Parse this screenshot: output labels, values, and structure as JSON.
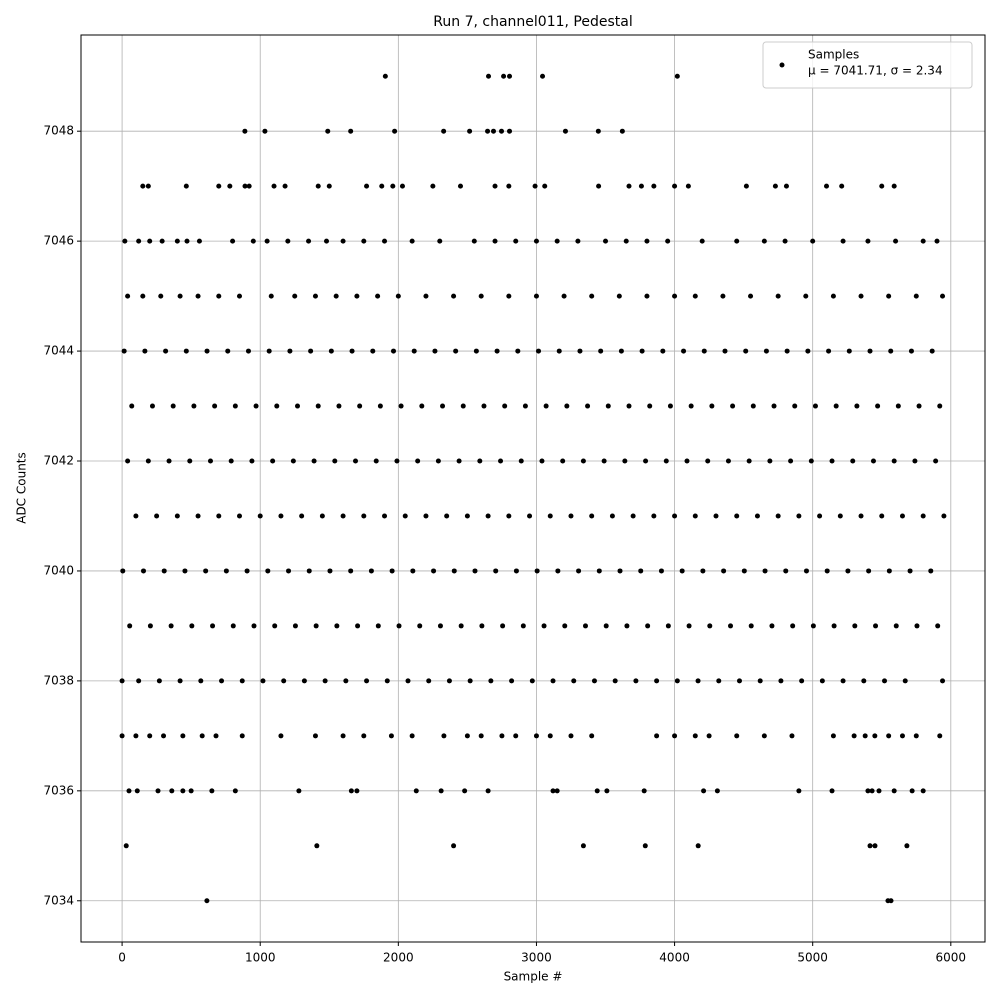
{
  "chart_data": {
    "type": "scatter",
    "title": "Run 7, channel011, Pedestal",
    "x_label": "Sample #",
    "y_label": "ADC Counts",
    "legend_position": "upper right",
    "stats_label": "μ = 7041.71, σ = 2.34",
    "grid": true,
    "xlim": [
      -297.5,
      6247.5
    ],
    "ylim": [
      7033.25,
      7049.75
    ],
    "xticks": [
      0,
      1000,
      2000,
      3000,
      4000,
      5000,
      6000
    ],
    "yticks": [
      7034,
      7036,
      7038,
      7040,
      7042,
      7044,
      7046,
      7048
    ],
    "x": [
      1906,
      2653,
      2762,
      2805,
      3044,
      4020,
      889,
      1034,
      1489,
      1655,
      1973,
      2328,
      2516,
      2646,
      2689,
      2747,
      2805,
      3210,
      3448,
      3622,
      150,
      190,
      465,
      700,
      780,
      890,
      920,
      1100,
      1180,
      1420,
      1500,
      1770,
      1880,
      1960,
      2030,
      2250,
      2450,
      2700,
      2800,
      2990,
      3060,
      3450,
      3670,
      3760,
      3850,
      4000,
      4100,
      4520,
      4730,
      4810,
      5100,
      5210,
      5500,
      5590,
      20,
      120,
      200,
      290,
      400,
      470,
      560,
      800,
      950,
      1050,
      1200,
      1350,
      1480,
      1600,
      1750,
      1900,
      2100,
      2300,
      2550,
      2700,
      2850,
      3000,
      3150,
      3300,
      3500,
      3650,
      3800,
      3950,
      4200,
      4450,
      4650,
      4800,
      5000,
      5220,
      5400,
      5600,
      5800,
      5900,
      40,
      150,
      280,
      420,
      550,
      700,
      850,
      1080,
      1250,
      1400,
      1550,
      1700,
      1850,
      2000,
      2200,
      2400,
      2600,
      2800,
      3000,
      3200,
      3400,
      3600,
      3800,
      4000,
      4150,
      4350,
      4550,
      4750,
      4950,
      5150,
      5350,
      5550,
      5750,
      5940,
      15,
      165,
      315,
      465,
      615,
      765,
      915,
      1065,
      1215,
      1365,
      1515,
      1665,
      1815,
      1965,
      2115,
      2265,
      2415,
      2565,
      2715,
      2865,
      3015,
      3165,
      3315,
      3465,
      3615,
      3765,
      3915,
      4065,
      4215,
      4365,
      4515,
      4665,
      4815,
      4965,
      5115,
      5265,
      5415,
      5565,
      5715,
      5865,
      70,
      220,
      370,
      520,
      670,
      820,
      970,
      1120,
      1270,
      1420,
      1570,
      1720,
      1870,
      2020,
      2170,
      2320,
      2470,
      2620,
      2770,
      2920,
      3070,
      3220,
      3370,
      3520,
      3670,
      3820,
      3970,
      4120,
      4270,
      4420,
      4570,
      4720,
      4870,
      5020,
      5170,
      5320,
      5470,
      5620,
      5770,
      5920,
      40,
      190,
      340,
      490,
      640,
      790,
      940,
      1090,
      1240,
      1390,
      1540,
      1690,
      1840,
      1990,
      2140,
      2290,
      2440,
      2590,
      2740,
      2890,
      3040,
      3190,
      3340,
      3490,
      3640,
      3790,
      3940,
      4090,
      4240,
      4390,
      4540,
      4690,
      4840,
      4990,
      5140,
      5290,
      5440,
      5590,
      5740,
      5890,
      100,
      250,
      400,
      550,
      700,
      850,
      1000,
      1150,
      1300,
      1450,
      1600,
      1750,
      1900,
      2050,
      2200,
      2350,
      2500,
      2650,
      2800,
      2950,
      3100,
      3250,
      3400,
      3550,
      3700,
      3850,
      4000,
      4150,
      4300,
      4450,
      4600,
      4750,
      4900,
      5050,
      5200,
      5350,
      5500,
      5650,
      5800,
      5950,
      5,
      155,
      305,
      455,
      605,
      755,
      905,
      1055,
      1205,
      1355,
      1505,
      1655,
      1805,
      1955,
      2105,
      2255,
      2405,
      2555,
      2705,
      2855,
      3005,
      3155,
      3305,
      3455,
      3605,
      3755,
      3905,
      4055,
      4205,
      4355,
      4505,
      4655,
      4805,
      4955,
      5105,
      5255,
      5405,
      5555,
      5705,
      5855,
      55,
      205,
      355,
      505,
      655,
      805,
      955,
      1105,
      1255,
      1405,
      1555,
      1705,
      1855,
      2005,
      2155,
      2305,
      2455,
      2605,
      2755,
      2905,
      3055,
      3205,
      3355,
      3505,
      3655,
      3805,
      3955,
      4105,
      4255,
      4405,
      4555,
      4705,
      4855,
      5005,
      5155,
      5305,
      5455,
      5605,
      5755,
      5905,
      0,
      120,
      270,
      420,
      570,
      720,
      870,
      1020,
      1170,
      1320,
      1470,
      1620,
      1770,
      1920,
      2070,
      2220,
      2370,
      2520,
      2670,
      2820,
      2970,
      3120,
      3270,
      3420,
      3570,
      3720,
      3870,
      4020,
      4170,
      4320,
      4470,
      4620,
      4770,
      4920,
      5070,
      5220,
      5370,
      5520,
      5670,
      5940,
      0,
      100,
      200,
      300,
      440,
      580,
      680,
      870,
      1150,
      1400,
      1600,
      1750,
      1950,
      2100,
      2330,
      2500,
      2600,
      2750,
      2850,
      3000,
      3100,
      3250,
      3400,
      3870,
      4000,
      4150,
      4250,
      4450,
      4650,
      4850,
      5150,
      5300,
      5380,
      5450,
      5550,
      5650,
      5750,
      5920,
      50,
      110,
      260,
      360,
      440,
      500,
      650,
      820,
      1280,
      1660,
      1700,
      2130,
      2310,
      2480,
      2650,
      3120,
      3150,
      3440,
      3510,
      3780,
      4210,
      4310,
      4900,
      5140,
      5400,
      5430,
      5480,
      5590,
      5720,
      5800,
      30,
      1410,
      2400,
      3340,
      3788,
      4171,
      5415,
      5451,
      5682,
      614,
      5545,
      5567
    ],
    "series": [
      {
        "name": "Samples",
        "color": "#000000",
        "values": [
          7049,
          7049,
          7049,
          7049,
          7049,
          7049,
          7048,
          7048,
          7048,
          7048,
          7048,
          7048,
          7048,
          7048,
          7048,
          7048,
          7048,
          7048,
          7048,
          7048,
          7047,
          7047,
          7047,
          7047,
          7047,
          7047,
          7047,
          7047,
          7047,
          7047,
          7047,
          7047,
          7047,
          7047,
          7047,
          7047,
          7047,
          7047,
          7047,
          7047,
          7047,
          7047,
          7047,
          7047,
          7047,
          7047,
          7047,
          7047,
          7047,
          7047,
          7047,
          7047,
          7047,
          7047,
          7046,
          7046,
          7046,
          7046,
          7046,
          7046,
          7046,
          7046,
          7046,
          7046,
          7046,
          7046,
          7046,
          7046,
          7046,
          7046,
          7046,
          7046,
          7046,
          7046,
          7046,
          7046,
          7046,
          7046,
          7046,
          7046,
          7046,
          7046,
          7046,
          7046,
          7046,
          7046,
          7046,
          7046,
          7046,
          7046,
          7046,
          7046,
          7045,
          7045,
          7045,
          7045,
          7045,
          7045,
          7045,
          7045,
          7045,
          7045,
          7045,
          7045,
          7045,
          7045,
          7045,
          7045,
          7045,
          7045,
          7045,
          7045,
          7045,
          7045,
          7045,
          7045,
          7045,
          7045,
          7045,
          7045,
          7045,
          7045,
          7045,
          7045,
          7045,
          7045,
          7044,
          7044,
          7044,
          7044,
          7044,
          7044,
          7044,
          7044,
          7044,
          7044,
          7044,
          7044,
          7044,
          7044,
          7044,
          7044,
          7044,
          7044,
          7044,
          7044,
          7044,
          7044,
          7044,
          7044,
          7044,
          7044,
          7044,
          7044,
          7044,
          7044,
          7044,
          7044,
          7044,
          7044,
          7044,
          7044,
          7044,
          7044,
          7044,
          7044,
          7043,
          7043,
          7043,
          7043,
          7043,
          7043,
          7043,
          7043,
          7043,
          7043,
          7043,
          7043,
          7043,
          7043,
          7043,
          7043,
          7043,
          7043,
          7043,
          7043,
          7043,
          7043,
          7043,
          7043,
          7043,
          7043,
          7043,
          7043,
          7043,
          7043,
          7043,
          7043,
          7043,
          7043,
          7043,
          7043,
          7043,
          7043,
          7043,
          7043,
          7042,
          7042,
          7042,
          7042,
          7042,
          7042,
          7042,
          7042,
          7042,
          7042,
          7042,
          7042,
          7042,
          7042,
          7042,
          7042,
          7042,
          7042,
          7042,
          7042,
          7042,
          7042,
          7042,
          7042,
          7042,
          7042,
          7042,
          7042,
          7042,
          7042,
          7042,
          7042,
          7042,
          7042,
          7042,
          7042,
          7042,
          7042,
          7042,
          7042,
          7041,
          7041,
          7041,
          7041,
          7041,
          7041,
          7041,
          7041,
          7041,
          7041,
          7041,
          7041,
          7041,
          7041,
          7041,
          7041,
          7041,
          7041,
          7041,
          7041,
          7041,
          7041,
          7041,
          7041,
          7041,
          7041,
          7041,
          7041,
          7041,
          7041,
          7041,
          7041,
          7041,
          7041,
          7041,
          7041,
          7041,
          7041,
          7041,
          7041,
          7040,
          7040,
          7040,
          7040,
          7040,
          7040,
          7040,
          7040,
          7040,
          7040,
          7040,
          7040,
          7040,
          7040,
          7040,
          7040,
          7040,
          7040,
          7040,
          7040,
          7040,
          7040,
          7040,
          7040,
          7040,
          7040,
          7040,
          7040,
          7040,
          7040,
          7040,
          7040,
          7040,
          7040,
          7040,
          7040,
          7040,
          7040,
          7040,
          7040,
          7039,
          7039,
          7039,
          7039,
          7039,
          7039,
          7039,
          7039,
          7039,
          7039,
          7039,
          7039,
          7039,
          7039,
          7039,
          7039,
          7039,
          7039,
          7039,
          7039,
          7039,
          7039,
          7039,
          7039,
          7039,
          7039,
          7039,
          7039,
          7039,
          7039,
          7039,
          7039,
          7039,
          7039,
          7039,
          7039,
          7039,
          7039,
          7039,
          7039,
          7038,
          7038,
          7038,
          7038,
          7038,
          7038,
          7038,
          7038,
          7038,
          7038,
          7038,
          7038,
          7038,
          7038,
          7038,
          7038,
          7038,
          7038,
          7038,
          7038,
          7038,
          7038,
          7038,
          7038,
          7038,
          7038,
          7038,
          7038,
          7038,
          7038,
          7038,
          7038,
          7038,
          7038,
          7038,
          7038,
          7038,
          7038,
          7038,
          7038,
          7037,
          7037,
          7037,
          7037,
          7037,
          7037,
          7037,
          7037,
          7037,
          7037,
          7037,
          7037,
          7037,
          7037,
          7037,
          7037,
          7037,
          7037,
          7037,
          7037,
          7037,
          7037,
          7037,
          7037,
          7037,
          7037,
          7037,
          7037,
          7037,
          7037,
          7037,
          7037,
          7037,
          7037,
          7037,
          7037,
          7037,
          7037,
          7036,
          7036,
          7036,
          7036,
          7036,
          7036,
          7036,
          7036,
          7036,
          7036,
          7036,
          7036,
          7036,
          7036,
          7036,
          7036,
          7036,
          7036,
          7036,
          7036,
          7036,
          7036,
          7036,
          7036,
          7036,
          7036,
          7036,
          7036,
          7036,
          7036,
          7035,
          7035,
          7035,
          7035,
          7035,
          7035,
          7035,
          7035,
          7035,
          7034,
          7034,
          7034
        ]
      }
    ]
  }
}
